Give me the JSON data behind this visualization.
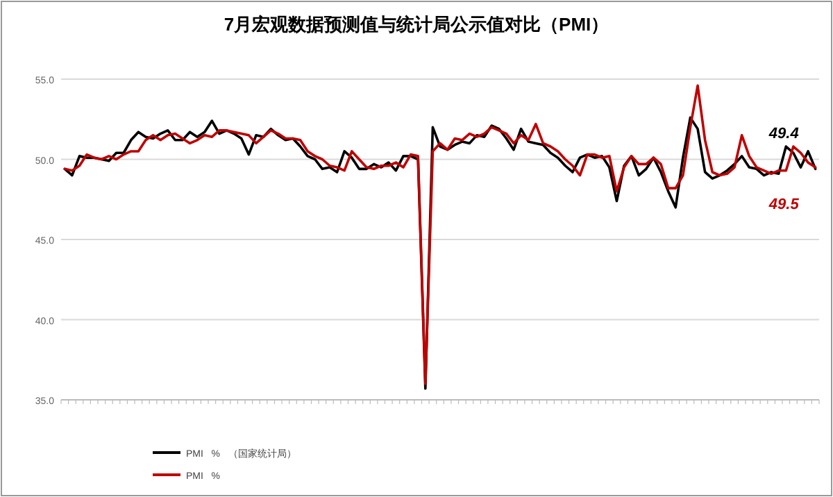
{
  "chart_data": {
    "type": "line",
    "title": "7月宏观数据预测值与统计局公示值对比（PMI）",
    "categories": [
      null,
      null,
      null,
      null,
      null,
      null,
      null,
      null,
      null,
      null,
      null,
      null,
      null,
      null,
      null,
      null,
      null,
      null,
      null,
      null,
      null,
      null,
      null,
      null,
      null,
      null,
      null,
      null,
      null,
      null,
      null,
      null,
      null,
      null,
      null,
      null,
      null,
      null,
      null,
      null,
      null,
      null,
      null,
      null,
      null,
      null,
      null,
      null,
      null,
      null,
      null,
      null,
      null,
      null,
      null,
      null,
      null,
      null,
      null,
      null,
      null,
      null,
      null,
      null,
      null,
      null,
      null,
      null,
      null,
      null,
      null,
      null,
      null,
      null,
      null,
      null,
      null,
      null,
      null,
      null,
      null,
      null,
      null,
      null,
      null,
      null,
      null,
      null,
      null,
      null,
      null,
      null,
      null,
      null,
      null,
      null,
      null,
      null,
      null,
      null,
      null,
      null,
      null
    ],
    "series": [
      {
        "name": "PMI   %   （国家统计局）",
        "color": "#000000",
        "values": [
          49.4,
          49.0,
          50.2,
          50.1,
          50.1,
          50.0,
          49.9,
          50.4,
          50.4,
          51.2,
          51.7,
          51.4,
          51.3,
          51.6,
          51.8,
          51.2,
          51.2,
          51.7,
          51.4,
          51.7,
          52.4,
          51.6,
          51.8,
          51.6,
          51.3,
          50.3,
          51.5,
          51.4,
          51.9,
          51.5,
          51.2,
          51.3,
          50.8,
          50.2,
          50.0,
          49.4,
          49.5,
          49.2,
          50.5,
          50.1,
          49.4,
          49.4,
          49.7,
          49.5,
          49.8,
          49.3,
          50.2,
          50.2,
          50.0,
          35.7,
          52.0,
          50.8,
          50.6,
          50.9,
          51.1,
          51.0,
          51.5,
          51.4,
          52.1,
          51.9,
          51.3,
          50.6,
          51.9,
          51.1,
          51.0,
          50.9,
          50.4,
          50.1,
          49.6,
          49.2,
          50.1,
          50.3,
          50.1,
          50.2,
          49.5,
          47.4,
          49.6,
          50.2,
          49.0,
          49.4,
          50.1,
          49.2,
          48.0,
          47.0,
          50.1,
          52.6,
          51.9,
          49.2,
          48.8,
          49.0,
          49.3,
          49.7,
          50.2,
          49.5,
          49.4,
          49.0,
          49.2,
          49.1,
          50.8,
          50.4,
          49.5,
          50.5,
          49.4
        ]
      },
      {
        "name": "PMI   %",
        "color": "#c00000",
        "values": [
          49.4,
          49.3,
          49.6,
          50.3,
          50.1,
          50.0,
          50.2,
          50.0,
          50.3,
          50.5,
          50.5,
          51.2,
          51.5,
          51.2,
          51.5,
          51.6,
          51.3,
          51.0,
          51.2,
          51.5,
          51.4,
          51.8,
          51.8,
          51.7,
          51.6,
          51.5,
          51.0,
          51.4,
          51.8,
          51.6,
          51.3,
          51.3,
          51.2,
          50.5,
          50.2,
          50.0,
          49.6,
          49.5,
          49.3,
          50.5,
          50.0,
          49.5,
          49.4,
          49.6,
          49.6,
          49.8,
          49.5,
          50.3,
          50.2,
          36.0,
          50.5,
          51.0,
          50.6,
          51.3,
          51.2,
          51.6,
          51.4,
          51.6,
          52.0,
          51.8,
          51.6,
          51.0,
          51.5,
          51.2,
          52.2,
          51.0,
          50.8,
          50.5,
          50.0,
          49.6,
          49.0,
          50.3,
          50.3,
          50.1,
          50.2,
          48.0,
          49.5,
          50.2,
          49.7,
          49.7,
          50.1,
          49.7,
          48.2,
          48.2,
          49.0,
          52.0,
          54.6,
          51.2,
          49.2,
          49.0,
          49.1,
          49.5,
          51.5,
          50.2,
          49.5,
          49.3,
          49.1,
          49.3,
          49.3,
          50.8,
          50.4,
          49.8,
          49.5
        ]
      }
    ],
    "ylim": [
      35,
      55
    ],
    "yticks": [
      {
        "value": 35,
        "label": "35.0"
      },
      {
        "value": 40,
        "label": "40.0"
      },
      {
        "value": 45,
        "label": "45.0"
      },
      {
        "value": 50,
        "label": "50.0"
      },
      {
        "value": 55,
        "label": "55.0"
      }
    ],
    "grid": "y",
    "legend": "bottom left",
    "marker": "none",
    "line_style": "solid",
    "annotations": [
      "49.4",
      "49.5"
    ]
  }
}
